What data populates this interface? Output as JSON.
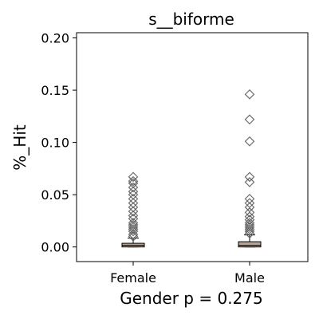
{
  "chart_data": {
    "type": "box",
    "title": "s__biforme",
    "xlabel": "Gender p = 0.275",
    "ylabel": "%_Hit",
    "ylim": [
      -0.014,
      0.205
    ],
    "yticks": [
      "0.00",
      "0.05",
      "0.10",
      "0.15",
      "0.20"
    ],
    "ytick_values": [
      0.0,
      0.05,
      0.1,
      0.15,
      0.2
    ],
    "grid": false,
    "categories": [
      "Female",
      "Male"
    ],
    "box_color": "#b4a59a",
    "series": [
      {
        "category": "Female",
        "q1": 0.0,
        "median": 0.0015,
        "q3": 0.0035,
        "whisker_low": 0.0,
        "whisker_high": 0.0085,
        "outliers": [
          0.01,
          0.012,
          0.015,
          0.017,
          0.019,
          0.021,
          0.023,
          0.027,
          0.03,
          0.034,
          0.038,
          0.042,
          0.046,
          0.05,
          0.053,
          0.057,
          0.061,
          0.063,
          0.067
        ]
      },
      {
        "category": "Male",
        "q1": 0.0,
        "median": 0.0015,
        "q3": 0.005,
        "whisker_low": 0.0,
        "whisker_high": 0.0115,
        "outliers": [
          0.013,
          0.015,
          0.017,
          0.019,
          0.021,
          0.023,
          0.026,
          0.029,
          0.033,
          0.038,
          0.042,
          0.046,
          0.062,
          0.067,
          0.101,
          0.122,
          0.146
        ]
      }
    ]
  }
}
